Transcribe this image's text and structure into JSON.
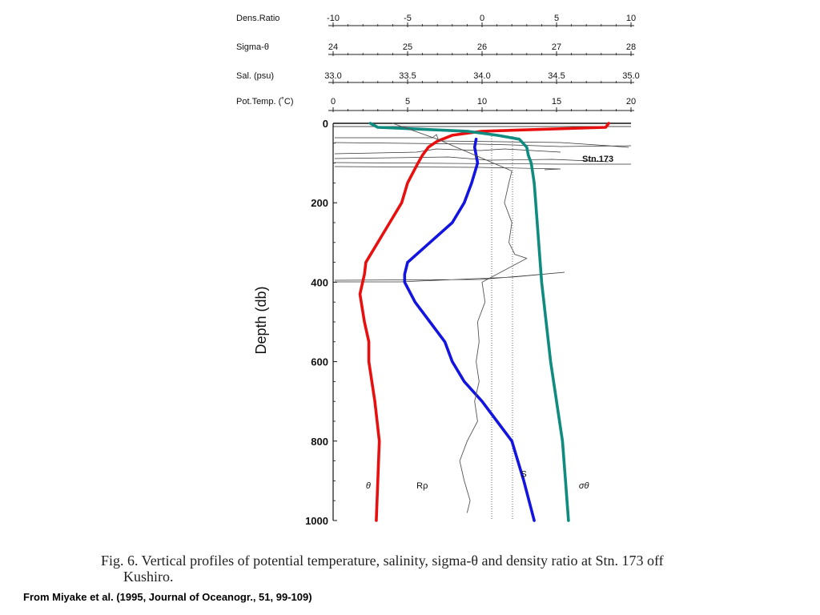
{
  "chart_data": {
    "type": "line",
    "station_label": "Stn.173",
    "ylabel": "Depth  (db)",
    "yticks": [
      "0",
      "200",
      "400",
      "600",
      "800",
      "1000"
    ],
    "ylim": [
      0,
      1000
    ],
    "y_reversed": true,
    "top_axes": [
      {
        "name": "Dens.Ratio",
        "min": -10,
        "max": 10,
        "ticks": [
          "-10",
          "-5",
          "0",
          "5",
          "10"
        ]
      },
      {
        "name": "Sigma-θ",
        "min": 24,
        "max": 28,
        "ticks": [
          "24",
          "25",
          "26",
          "27",
          "28"
        ]
      },
      {
        "name": "Sal.  (psu)",
        "min": 33.0,
        "max": 35.0,
        "ticks": [
          "33.0",
          "33.5",
          "34.0",
          "34.5",
          "35.0"
        ]
      },
      {
        "name": "Pot.Temp.  (˚C)",
        "min": 0,
        "max": 20,
        "ticks": [
          "0",
          "5",
          "10",
          "15",
          "20"
        ]
      }
    ],
    "series": [
      {
        "name": "θ",
        "axis": "Pot.Temp.  (˚C)",
        "color": "#e8100f",
        "depth": [
          0,
          10,
          20,
          30,
          45,
          60,
          80,
          100,
          150,
          200,
          250,
          300,
          350,
          380,
          430,
          500,
          550,
          600,
          700,
          800,
          900,
          1000
        ],
        "values": [
          18.5,
          18.3,
          10.0,
          8.0,
          7.0,
          6.4,
          6.0,
          5.7,
          5.0,
          4.6,
          3.8,
          3.0,
          2.2,
          2.1,
          1.8,
          2.1,
          2.4,
          2.4,
          2.8,
          3.1,
          3.0,
          2.9
        ]
      },
      {
        "name": "S",
        "axis": "Sal.  (psu)",
        "color": "#1414e0",
        "depth": [
          40,
          60,
          80,
          100,
          150,
          200,
          250,
          300,
          350,
          380,
          400,
          450,
          500,
          550,
          600,
          650,
          700,
          750,
          800,
          900,
          1000
        ],
        "values": [
          33.96,
          33.95,
          33.96,
          33.97,
          33.93,
          33.88,
          33.8,
          33.65,
          33.5,
          33.48,
          33.48,
          33.55,
          33.65,
          33.75,
          33.8,
          33.88,
          34.0,
          34.1,
          34.2,
          34.28,
          34.35
        ]
      },
      {
        "name": "σθ",
        "axis": "Sigma-θ",
        "color": "#108b80",
        "depth": [
          0,
          10,
          15,
          20,
          25,
          30,
          40,
          60,
          80,
          100,
          150,
          200,
          300,
          400,
          500,
          600,
          700,
          800,
          900,
          1000
        ],
        "values": [
          24.5,
          24.6,
          25.2,
          25.8,
          26.0,
          26.2,
          26.5,
          26.6,
          26.62,
          26.66,
          26.7,
          26.72,
          26.76,
          26.8,
          26.86,
          26.92,
          27.0,
          27.08,
          27.12,
          27.16
        ]
      },
      {
        "name": "Rρ",
        "axis": "Dens.Ratio",
        "color": "#555555",
        "depth": [
          0,
          40,
          120,
          150,
          200,
          250,
          300,
          330,
          340,
          400,
          450,
          500,
          550,
          600,
          650,
          700,
          750,
          800,
          850,
          900,
          950,
          980
        ],
        "values": [
          -6.0,
          -3.0,
          2.0,
          1.8,
          1.5,
          2.0,
          1.8,
          2.2,
          3.0,
          0.0,
          0.2,
          -0.3,
          -0.2,
          -0.4,
          -0.2,
          -0.5,
          -0.3,
          -1.0,
          -1.5,
          -1.2,
          -0.8,
          -1.0
        ]
      }
    ],
    "series_labels": [
      {
        "text": "θ",
        "depth": 960,
        "axis": "Pot.Temp.  (˚C)",
        "value": 2.2
      },
      {
        "text": "Rρ",
        "depth": 960,
        "axis": "Dens.Ratio",
        "value": -4.4
      },
      {
        "text": "S",
        "depth": 930,
        "axis": "Sal.  (psu)",
        "value": 34.26
      },
      {
        "text": "σθ",
        "depth": 960,
        "axis": "Sigma-θ",
        "value": 27.3
      }
    ]
  },
  "caption": {
    "line1": "Fig. 6.  Vertical profiles of potential temperature, salinity, sigma-θ and density ratio at Stn. 173 off",
    "line2": "Kushiro."
  },
  "source": "From Miyake et al. (1995, Journal of Oceanogr., 51, 99-109)"
}
